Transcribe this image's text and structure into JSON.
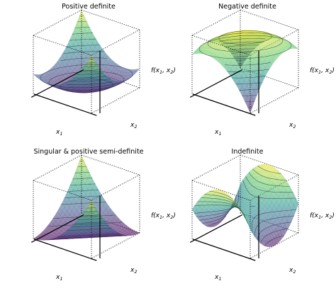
{
  "colors": {
    "colormap": "viridis",
    "viridis_stops": [
      "#440154",
      "#3b528b",
      "#21918c",
      "#5ec962",
      "#fde725"
    ],
    "surface_alpha": 0.55,
    "contour": "#2b2b3a",
    "axes": "#000000"
  },
  "chart_data": [
    {
      "type": "surface3d",
      "title": "Positive definite",
      "xlabel": "x",
      "xlabel_sub": "1",
      "ylabel": "x",
      "ylabel_sub": "2",
      "zlabel": "f(x",
      "zlabel_sub1": "1",
      "zlabel_mid": ", x",
      "zlabel_sub2": "2",
      "zlabel_end": ")",
      "function": "positive-definite",
      "coefficients": {
        "a": 1,
        "b": 0.5,
        "c": 1
      },
      "xlim": [
        -1,
        1
      ],
      "ylim": [
        -1,
        1
      ],
      "grid": false
    },
    {
      "type": "surface3d",
      "title": "Negative definite",
      "xlabel": "x",
      "xlabel_sub": "1",
      "ylabel": "x",
      "ylabel_sub": "2",
      "zlabel": "f(x",
      "zlabel_sub1": "1",
      "zlabel_mid": ", x",
      "zlabel_sub2": "2",
      "zlabel_end": ")",
      "function": "negative-definite",
      "coefficients": {
        "a": -1,
        "b": -0.5,
        "c": -1
      },
      "xlim": [
        -1,
        1
      ],
      "ylim": [
        -1,
        1
      ],
      "grid": false
    },
    {
      "type": "surface3d",
      "title": "Singular & positive semi-definite",
      "xlabel": "x",
      "xlabel_sub": "1",
      "ylabel": "x",
      "ylabel_sub": "2",
      "zlabel": "f(x",
      "zlabel_sub1": "1",
      "zlabel_mid": ", x",
      "zlabel_sub2": "2",
      "zlabel_end": ")",
      "function": "singular-semidefinite",
      "coefficients": {
        "a": 1,
        "b": 1,
        "c": 1
      },
      "xlim": [
        -1,
        1
      ],
      "ylim": [
        -1,
        1
      ],
      "grid": false
    },
    {
      "type": "surface3d",
      "title": "Indefinite",
      "xlabel": "x",
      "xlabel_sub": "1",
      "ylabel": "x",
      "ylabel_sub": "2",
      "zlabel": "f(x",
      "zlabel_sub1": "1",
      "zlabel_mid": ", x",
      "zlabel_sub2": "2",
      "zlabel_end": ")",
      "function": "indefinite",
      "coefficients": {
        "a": 1,
        "b": 0,
        "c": -1
      },
      "xlim": [
        -1,
        1
      ],
      "ylim": [
        -1,
        1
      ],
      "grid": false
    }
  ]
}
